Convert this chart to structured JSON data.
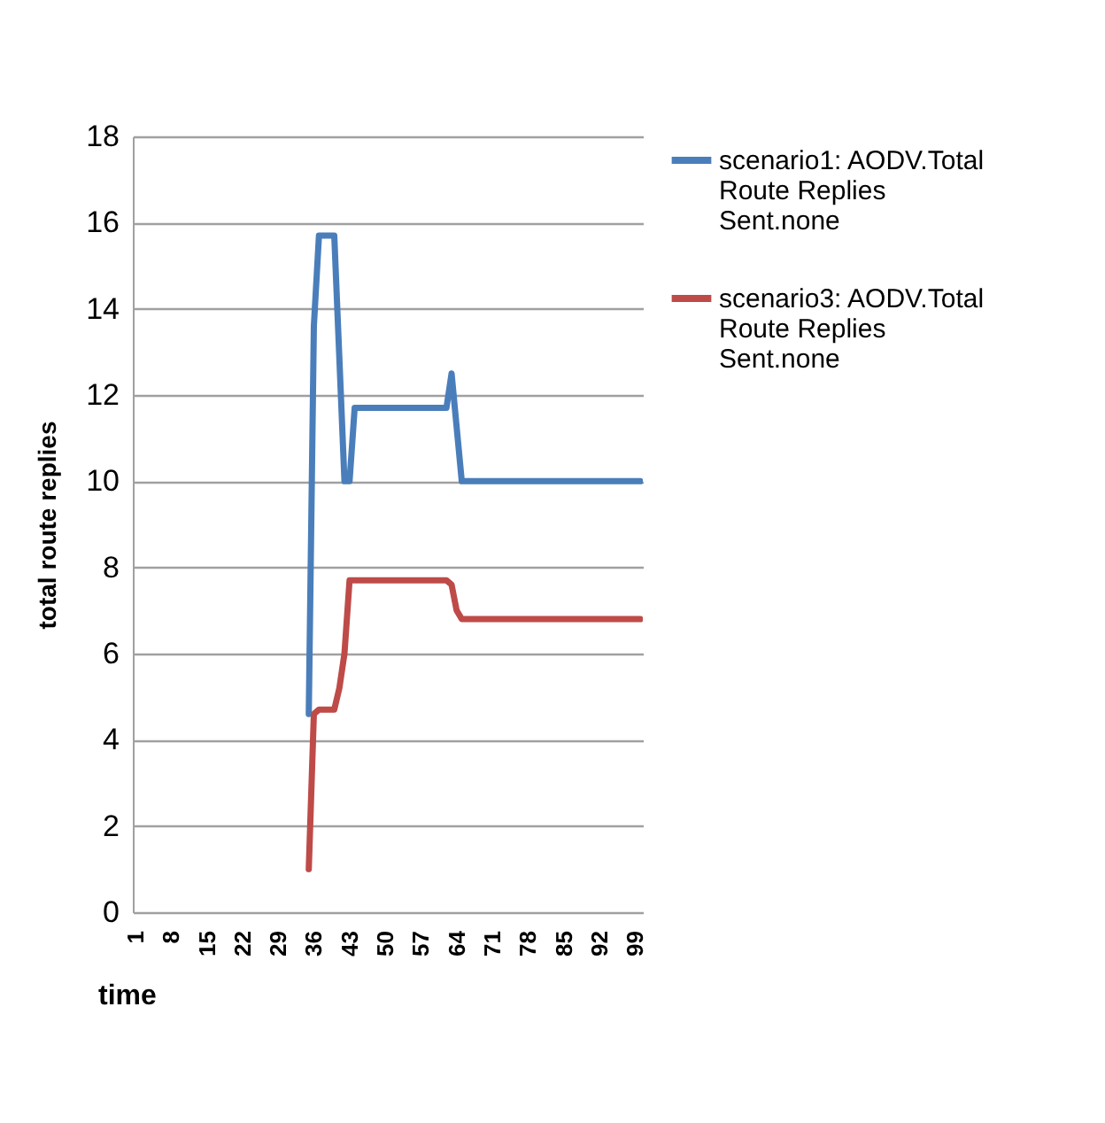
{
  "chart_data": {
    "type": "line",
    "xlabel": "time",
    "ylabel": "total route replies",
    "xlim": [
      0.5,
      100.5
    ],
    "xticks": [
      1,
      8,
      15,
      22,
      29,
      36,
      43,
      50,
      57,
      64,
      71,
      78,
      85,
      92,
      99
    ],
    "ylim": [
      0,
      18
    ],
    "yticks": [
      0,
      2,
      4,
      6,
      8,
      10,
      12,
      14,
      16,
      18
    ],
    "grid": "y",
    "legend": "right",
    "series": [
      {
        "name": "scenario1: AODV.Total Route Replies Sent.none",
        "color": "#4a7ebb",
        "x": [
          35,
          36,
          37,
          40,
          42,
          43,
          44,
          62,
          63,
          65,
          100
        ],
        "values": [
          4.6,
          13.6,
          15.7,
          15.7,
          10,
          10,
          11.7,
          11.7,
          12.5,
          10,
          10
        ]
      },
      {
        "name": "scenario3: AODV.Total Route Replies Sent.none",
        "color": "#be4b48",
        "x": [
          35,
          36,
          37,
          40,
          41,
          42,
          43,
          62,
          63,
          64,
          65,
          100
        ],
        "values": [
          1,
          4.6,
          4.7,
          4.7,
          5.2,
          6,
          7.7,
          7.7,
          7.6,
          7,
          6.8,
          6.8
        ]
      }
    ]
  }
}
